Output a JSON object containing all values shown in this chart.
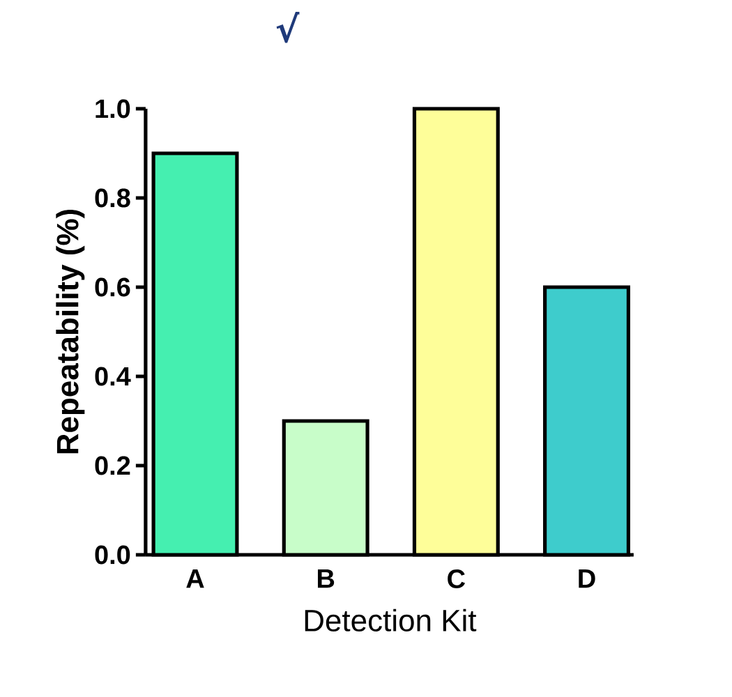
{
  "chart_data": {
    "type": "bar",
    "categories": [
      "A",
      "B",
      "C",
      "D"
    ],
    "values": [
      0.9,
      0.3,
      1.0,
      0.6
    ],
    "colors": [
      "#45efb0",
      "#c8fdc9",
      "#fefe99",
      "#3ecccc"
    ],
    "ylim": [
      0,
      1.0
    ],
    "yticks": [
      {
        "value": 0,
        "label": "0.0"
      },
      {
        "value": 0.2,
        "label": "0.2"
      },
      {
        "value": 0.4,
        "label": "0.4"
      },
      {
        "value": 0.6,
        "label": "0.6"
      },
      {
        "value": 0.8,
        "label": "0.8"
      },
      {
        "value": 1.0,
        "label": "1.0"
      }
    ],
    "xlabel": "Detection Kit",
    "ylabel": "Repeatability (%)",
    "annotations": [
      "√"
    ]
  }
}
